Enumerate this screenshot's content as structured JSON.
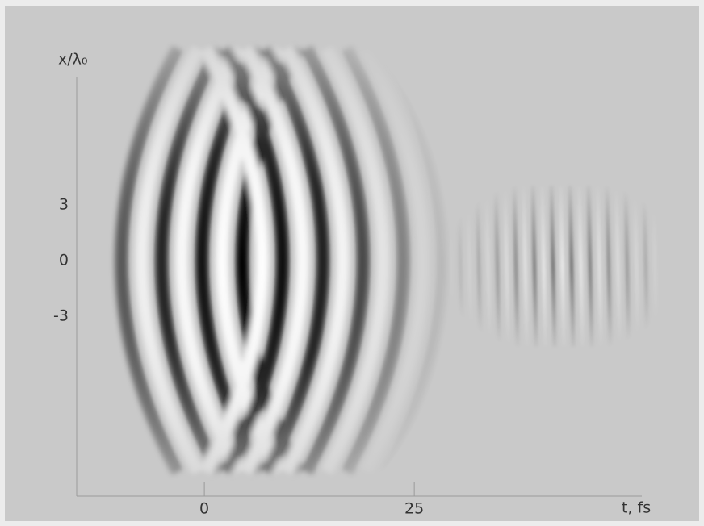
{
  "chart_data": {
    "type": "field-map",
    "y_label": "x/λ₀",
    "x_label": "t, fs",
    "xlim": [
      -15.2,
      52.1
    ],
    "xticks": [
      0,
      25
    ],
    "ylim": [
      -12.7,
      9.9
    ],
    "yticks": [
      3,
      0,
      -3
    ]
  }
}
